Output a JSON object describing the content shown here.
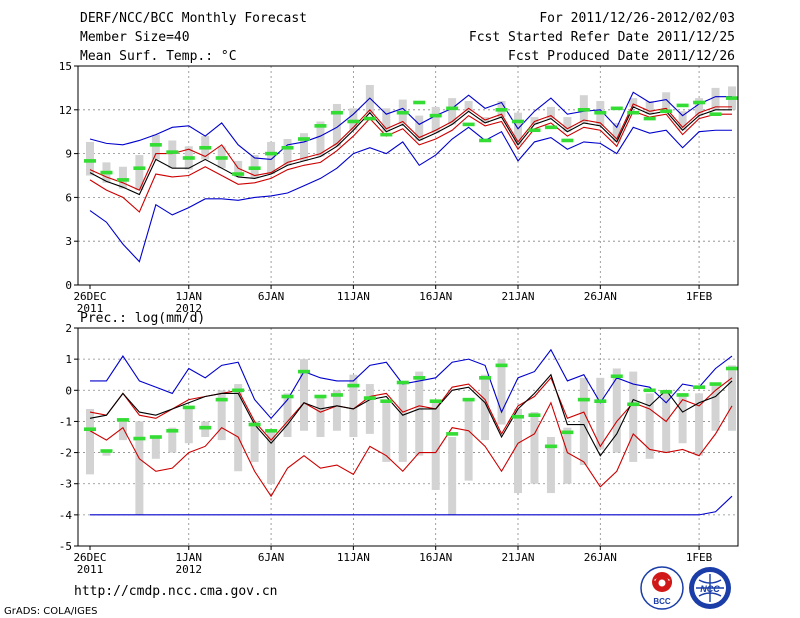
{
  "header": {
    "title": "DERF/NCC/BCC Monthly Forecast",
    "member_size": "Member Size=40",
    "period": "For 2011/12/26-2012/02/03",
    "started": "Fcst Started Refer Date 2011/12/25",
    "produced": "Fcst Produced Date 2011/12/26"
  },
  "footer": {
    "url": "http://cmdp.ncc.cma.gov.cn",
    "grads": "GrADS: COLA/IGES",
    "logo_bcc": "BCC",
    "logo_ncc": "NCC"
  },
  "colors": {
    "max": "#0000cc",
    "min": "#0000cc",
    "mean": "#000000",
    "band": "#cc0000",
    "box": "#d3d3d3",
    "median": "#33dd33"
  },
  "chart_data": [
    {
      "type": "line",
      "title": "Mean Surf. Temp.: °C",
      "ylim": [
        0,
        15
      ],
      "yticks": [
        0,
        3,
        6,
        9,
        12,
        15
      ],
      "xtick_labels": [
        {
          "day": 0,
          "label": "26DEC",
          "sub": "2011"
        },
        {
          "day": 6,
          "label": "1JAN",
          "sub": "2012"
        },
        {
          "day": 11,
          "label": "6JAN",
          "sub": ""
        },
        {
          "day": 16,
          "label": "11JAN",
          "sub": ""
        },
        {
          "day": 21,
          "label": "16JAN",
          "sub": ""
        },
        {
          "day": 26,
          "label": "21JAN",
          "sub": ""
        },
        {
          "day": 31,
          "label": "26JAN",
          "sub": ""
        },
        {
          "day": 37,
          "label": "1FEB",
          "sub": ""
        }
      ],
      "n_days": 40,
      "series": [
        {
          "name": "max",
          "values": [
            10.0,
            9.7,
            9.6,
            9.9,
            10.3,
            10.8,
            10.9,
            10.2,
            11.1,
            9.6,
            8.7,
            8.6,
            9.6,
            9.8,
            10.2,
            10.8,
            11.7,
            12.8,
            11.7,
            12.1,
            11.0,
            11.6,
            12.1,
            13.0,
            12.1,
            12.5,
            10.7,
            11.9,
            12.8,
            11.7,
            11.9,
            12.0,
            10.8,
            13.2,
            12.5,
            12.7,
            11.6,
            12.4,
            12.9,
            12.9
          ]
        },
        {
          "name": "upper",
          "values": [
            7.9,
            7.4,
            7.0,
            6.5,
            9.0,
            9.0,
            9.3,
            8.8,
            9.6,
            8.0,
            7.5,
            7.7,
            8.4,
            8.7,
            9.0,
            9.7,
            10.8,
            12.0,
            10.7,
            11.2,
            10.1,
            10.6,
            11.2,
            12.1,
            11.3,
            11.7,
            9.8,
            11.2,
            11.6,
            10.7,
            11.3,
            11.1,
            10.0,
            12.4,
            11.9,
            12.1,
            10.8,
            11.8,
            12.2,
            12.2
          ]
        },
        {
          "name": "mean",
          "values": [
            7.7,
            7.1,
            6.7,
            6.2,
            8.6,
            8.0,
            8.0,
            8.6,
            8.0,
            7.4,
            7.3,
            7.6,
            8.2,
            8.5,
            8.8,
            9.5,
            10.6,
            11.8,
            10.5,
            11.0,
            9.9,
            10.4,
            11.0,
            11.9,
            11.1,
            11.5,
            9.6,
            11.0,
            11.4,
            10.5,
            11.1,
            10.9,
            9.8,
            12.2,
            11.7,
            11.9,
            10.6,
            11.6,
            12.0,
            12.0
          ]
        },
        {
          "name": "lower",
          "values": [
            7.2,
            6.5,
            6.0,
            5.0,
            7.6,
            7.4,
            7.5,
            8.1,
            7.5,
            6.9,
            7.0,
            7.3,
            7.9,
            8.2,
            8.4,
            9.2,
            10.2,
            11.4,
            10.2,
            10.7,
            9.6,
            10.0,
            10.6,
            11.6,
            10.9,
            11.2,
            9.3,
            10.7,
            11.1,
            10.2,
            10.8,
            10.6,
            9.5,
            11.9,
            11.5,
            11.7,
            10.3,
            11.4,
            11.7,
            11.7
          ]
        },
        {
          "name": "min",
          "values": [
            5.1,
            4.3,
            2.8,
            1.6,
            5.5,
            4.8,
            5.3,
            5.9,
            5.9,
            5.8,
            6.0,
            6.1,
            6.3,
            6.8,
            7.3,
            8.0,
            9.0,
            9.4,
            9.0,
            9.8,
            8.2,
            8.9,
            10.0,
            10.8,
            9.9,
            10.5,
            8.5,
            9.8,
            10.1,
            9.3,
            9.8,
            9.7,
            9.0,
            10.8,
            10.4,
            10.6,
            9.4,
            10.5,
            10.6,
            10.6
          ]
        }
      ],
      "median": [
        8.5,
        7.7,
        7.2,
        8.0,
        9.6,
        9.1,
        8.7,
        9.4,
        8.7,
        7.6,
        8.0,
        9.0,
        9.4,
        10.0,
        10.9,
        11.8,
        11.2,
        11.4,
        10.3,
        11.8,
        12.5,
        11.6,
        12.1,
        11.0,
        9.9,
        12.0,
        11.2,
        10.6,
        10.8,
        9.9,
        12.0,
        11.8,
        12.1,
        11.8,
        11.4,
        11.9,
        12.3,
        12.5,
        11.7,
        12.8
      ],
      "boxes": [
        [
          7.5,
          9.8
        ],
        [
          7.0,
          8.4
        ],
        [
          6.6,
          8.1
        ],
        [
          6.5,
          8.9
        ],
        [
          8.6,
          10.3
        ],
        [
          8.0,
          9.9
        ],
        [
          7.9,
          9.5
        ],
        [
          8.6,
          10.2
        ],
        [
          8.0,
          9.5
        ],
        [
          7.4,
          8.5
        ],
        [
          7.3,
          8.9
        ],
        [
          7.6,
          9.8
        ],
        [
          8.2,
          10.0
        ],
        [
          8.5,
          10.4
        ],
        [
          8.8,
          11.2
        ],
        [
          9.5,
          12.4
        ],
        [
          10.6,
          12.1
        ],
        [
          11.8,
          13.7
        ],
        [
          10.5,
          12.1
        ],
        [
          11.0,
          12.7
        ],
        [
          9.9,
          11.6
        ],
        [
          10.4,
          12.2
        ],
        [
          11.0,
          12.8
        ],
        [
          11.9,
          12.6
        ],
        [
          11.1,
          11.5
        ],
        [
          11.5,
          12.6
        ],
        [
          9.6,
          11.8
        ],
        [
          11.0,
          11.5
        ],
        [
          11.4,
          12.2
        ],
        [
          10.5,
          11.5
        ],
        [
          11.1,
          13.0
        ],
        [
          10.9,
          12.6
        ],
        [
          9.8,
          11.1
        ],
        [
          12.2,
          12.8
        ],
        [
          11.7,
          12.6
        ],
        [
          11.9,
          13.2
        ],
        [
          10.6,
          11.9
        ],
        [
          11.6,
          12.8
        ],
        [
          12.0,
          13.5
        ],
        [
          12.0,
          13.6
        ]
      ]
    },
    {
      "type": "line",
      "title": "Prec.: log(mm/d)",
      "ylim": [
        -5,
        2
      ],
      "yticks": [
        -5,
        -4,
        -3,
        -2,
        -1,
        0,
        1,
        2
      ],
      "xtick_labels": [
        {
          "day": 0,
          "label": "26DEC",
          "sub": "2011"
        },
        {
          "day": 6,
          "label": "1JAN",
          "sub": "2012"
        },
        {
          "day": 11,
          "label": "6JAN",
          "sub": ""
        },
        {
          "day": 16,
          "label": "11JAN",
          "sub": ""
        },
        {
          "day": 21,
          "label": "16JAN",
          "sub": ""
        },
        {
          "day": 26,
          "label": "21JAN",
          "sub": ""
        },
        {
          "day": 31,
          "label": "26JAN",
          "sub": ""
        },
        {
          "day": 37,
          "label": "1FEB",
          "sub": ""
        }
      ],
      "n_days": 40,
      "series": [
        {
          "name": "max",
          "values": [
            0.3,
            0.3,
            1.1,
            0.3,
            0.1,
            -0.1,
            0.7,
            0.4,
            0.8,
            0.9,
            -0.3,
            -0.9,
            -0.3,
            0.6,
            0.4,
            0.3,
            0.3,
            0.8,
            0.9,
            0.2,
            0.3,
            0.4,
            0.9,
            1.0,
            0.8,
            -0.7,
            0.4,
            0.6,
            1.3,
            0.3,
            0.5,
            -0.4,
            0.4,
            0.2,
            0.1,
            -0.4,
            0.2,
            0.1,
            0.7,
            1.1
          ]
        },
        {
          "name": "upper",
          "values": [
            -0.7,
            -0.8,
            -0.1,
            -0.8,
            -0.9,
            -0.6,
            -0.3,
            -0.2,
            -0.1,
            0.0,
            -1.0,
            -1.6,
            -1.0,
            -0.4,
            -0.7,
            -0.5,
            -0.6,
            -0.2,
            -0.1,
            -0.7,
            -0.5,
            -0.6,
            0.1,
            0.2,
            -0.3,
            -1.4,
            -0.5,
            -0.2,
            0.4,
            -0.9,
            -0.7,
            -1.8,
            -1.0,
            -0.4,
            -0.6,
            -1.0,
            -0.3,
            -0.5,
            0.0,
            0.4
          ]
        },
        {
          "name": "mean",
          "values": [
            -0.9,
            -0.8,
            -0.1,
            -0.7,
            -0.8,
            -0.6,
            -0.4,
            -0.2,
            -0.1,
            -0.1,
            -1.1,
            -1.7,
            -1.1,
            -0.4,
            -0.6,
            -0.5,
            -0.6,
            -0.3,
            -0.2,
            -0.8,
            -0.6,
            -0.6,
            0.0,
            0.1,
            -0.4,
            -1.5,
            -0.6,
            -0.1,
            0.5,
            -1.1,
            -1.1,
            -2.1,
            -1.4,
            -0.3,
            -0.5,
            0.0,
            -0.7,
            -0.4,
            -0.2,
            0.3
          ]
        },
        {
          "name": "lower",
          "values": [
            -1.3,
            -1.6,
            -1.2,
            -2.2,
            -2.6,
            -2.5,
            -2.0,
            -1.8,
            -1.2,
            -1.5,
            -2.6,
            -3.4,
            -2.5,
            -2.1,
            -2.5,
            -2.4,
            -2.7,
            -1.8,
            -2.1,
            -2.6,
            -2.0,
            -2.0,
            -1.2,
            -1.3,
            -1.8,
            -2.6,
            -1.7,
            -1.4,
            -0.4,
            -2.0,
            -2.3,
            -3.1,
            -2.6,
            -1.4,
            -1.9,
            -2.0,
            -1.9,
            -2.1,
            -1.4,
            -0.5
          ]
        },
        {
          "name": "min",
          "values": [
            -4.0,
            -4.0,
            -4.0,
            -4.0,
            -4.0,
            -4.0,
            -4.0,
            -4.0,
            -4.0,
            -4.0,
            -4.0,
            -4.0,
            -4.0,
            -4.0,
            -4.0,
            -4.0,
            -4.0,
            -4.0,
            -4.0,
            -4.0,
            -4.0,
            -4.0,
            -4.0,
            -4.0,
            -4.0,
            -4.0,
            -4.0,
            -4.0,
            -4.0,
            -4.0,
            -4.0,
            -4.0,
            -4.0,
            -4.0,
            -4.0,
            -4.0,
            -4.0,
            -4.0,
            -3.9,
            -3.4
          ]
        },
        {
          "name": "mean_black_extra",
          "values": []
        }
      ],
      "median": [
        -1.25,
        -1.95,
        -0.95,
        -1.55,
        -1.5,
        -1.3,
        -0.55,
        -1.2,
        -0.3,
        0.0,
        -1.1,
        -1.3,
        -0.2,
        0.6,
        -0.2,
        -0.15,
        0.15,
        -0.25,
        -0.35,
        0.25,
        0.4,
        -0.35,
        -1.4,
        -0.3,
        0.4,
        0.8,
        -0.85,
        -0.8,
        -1.8,
        -1.35,
        -0.3,
        -0.35,
        0.45,
        -0.45,
        0.0,
        -0.05,
        -0.15,
        0.1,
        0.2,
        0.7
      ],
      "boxes": [
        [
          -2.7,
          -0.6
        ],
        [
          -2.1,
          -1.9
        ],
        [
          -1.6,
          -0.9
        ],
        [
          -4.0,
          -1.0
        ],
        [
          -2.2,
          -1.5
        ],
        [
          -2.0,
          -1.2
        ],
        [
          -1.7,
          -0.5
        ],
        [
          -1.5,
          -1.0
        ],
        [
          -1.6,
          0.0
        ],
        [
          -2.6,
          0.2
        ],
        [
          -2.3,
          -1.0
        ],
        [
          -3.0,
          -1.3
        ],
        [
          -1.5,
          -0.1
        ],
        [
          -1.3,
          1.0
        ],
        [
          -1.5,
          -0.2
        ],
        [
          -1.3,
          0.0
        ],
        [
          -1.5,
          0.5
        ],
        [
          -1.4,
          0.2
        ],
        [
          -2.3,
          -0.3
        ],
        [
          -2.3,
          0.3
        ],
        [
          -2.1,
          0.6
        ],
        [
          -3.2,
          -0.3
        ],
        [
          -4.0,
          -1.5
        ],
        [
          -2.9,
          -0.3
        ],
        [
          -1.6,
          0.5
        ],
        [
          -1.1,
          1.0
        ],
        [
          -3.3,
          -0.6
        ],
        [
          -3.0,
          -0.7
        ],
        [
          -3.3,
          -1.5
        ],
        [
          -3.0,
          -1.2
        ],
        [
          -2.4,
          0.4
        ],
        [
          -1.9,
          0.4
        ],
        [
          -2.0,
          0.7
        ],
        [
          -2.3,
          0.6
        ],
        [
          -2.2,
          -0.1
        ],
        [
          -2.0,
          0.0
        ],
        [
          -1.7,
          -0.1
        ],
        [
          -2.1,
          -0.1
        ],
        [
          -1.3,
          0.2
        ],
        [
          -1.3,
          0.8
        ]
      ]
    }
  ]
}
